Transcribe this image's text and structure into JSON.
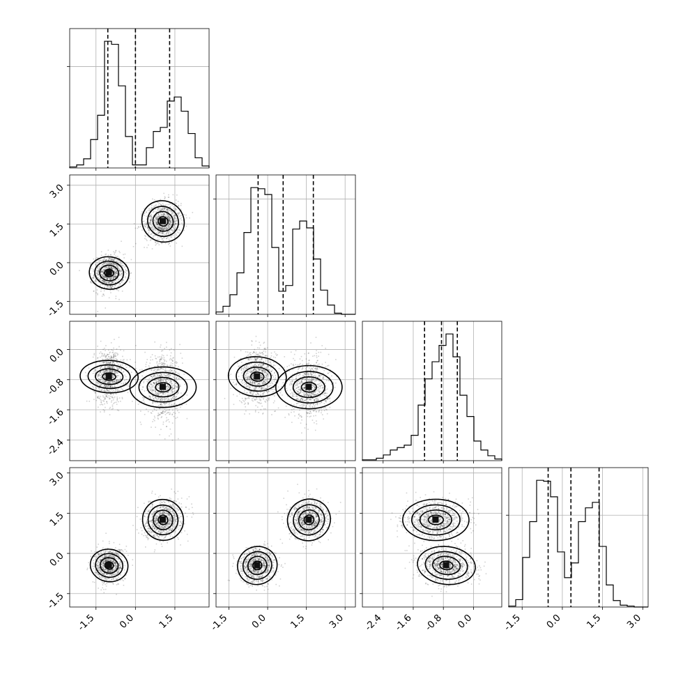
{
  "chart_data": {
    "type": "corner",
    "dims": 4,
    "grid": true,
    "axes": [
      {
        "range": [
          -2.5,
          2.8
        ],
        "ticks": [
          "-1.5",
          "0.0",
          "1.5"
        ],
        "tick_values": [
          -1.5,
          0.0,
          1.5
        ]
      },
      {
        "range": [
          -2.0,
          3.4
        ],
        "ticks": [
          "-1.5",
          "0.0",
          "1.5",
          "3.0"
        ],
        "tick_values": [
          -1.5,
          0.0,
          1.5,
          3.0
        ]
      },
      {
        "range": [
          -2.95,
          0.75
        ],
        "ticks": [
          "-2.4",
          "-1.6",
          "-0.8",
          "0.0"
        ],
        "tick_values": [
          -2.4,
          -1.6,
          -0.8,
          0.0
        ]
      },
      {
        "range": [
          -2.0,
          3.2
        ],
        "ticks": [
          "-1.5",
          "0.0",
          "1.5",
          "3.0"
        ],
        "tick_values": [
          -1.5,
          0.0,
          1.5,
          3.0
        ]
      }
    ],
    "histograms": [
      {
        "bins": 20,
        "counts": [
          1,
          3,
          9,
          28,
          52,
          125,
          122,
          81,
          31,
          3,
          3,
          20,
          36,
          40,
          66,
          70,
          56,
          34,
          10,
          2
        ],
        "quantiles": [
          -1.05,
          0.0,
          1.3
        ]
      },
      {
        "bins": 20,
        "counts": [
          2,
          7,
          17,
          36,
          71,
          110,
          109,
          104,
          58,
          20,
          25,
          74,
          81,
          75,
          48,
          21,
          8,
          1,
          0,
          0
        ],
        "quantiles": [
          -0.37,
          0.6,
          1.77
        ]
      },
      {
        "bins": 20,
        "counts": [
          1,
          1,
          3,
          7,
          13,
          16,
          19,
          31,
          68,
          100,
          121,
          141,
          155,
          127,
          80,
          54,
          24,
          13,
          6,
          2
        ],
        "quantiles": [
          -1.3,
          -0.85,
          -0.43
        ]
      },
      {
        "bins": 20,
        "counts": [
          1,
          8,
          54,
          93,
          138,
          137,
          120,
          60,
          32,
          48,
          93,
          108,
          114,
          66,
          24,
          7,
          2,
          1,
          0,
          0
        ],
        "quantiles": [
          -0.53,
          0.32,
          1.37
        ]
      }
    ],
    "modes": [
      {
        "mean": [
          -1.0,
          -0.4,
          -0.72,
          -0.45
        ],
        "sd": [
          0.28,
          0.35,
          0.35,
          0.32
        ],
        "rho": {
          "0-1": 0.05,
          "0-2": 0.05,
          "1-2": 0.05,
          "0-3": 0.05,
          "1-3": 0.05,
          "2-3": -0.1
        }
      },
      {
        "mean": [
          1.05,
          1.6,
          -1.0,
          1.25
        ],
        "sd": [
          0.35,
          0.38,
          0.4,
          0.35
        ],
        "rho": {
          "0-1": 0.15,
          "0-2": 0.0,
          "1-2": 0.0,
          "0-3": 0.2,
          "1-3": 0.05,
          "2-3": 0.0
        }
      }
    ]
  }
}
